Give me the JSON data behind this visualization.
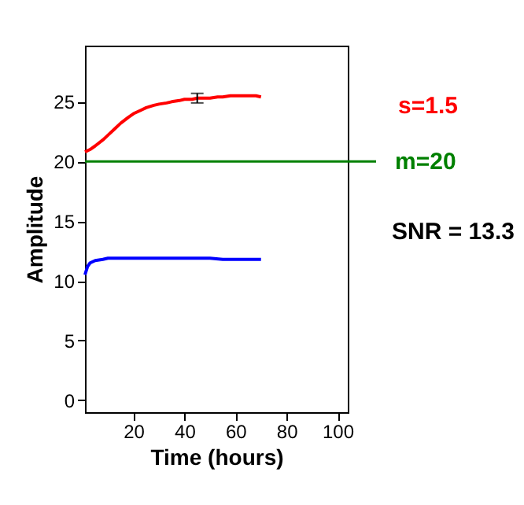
{
  "chart_data": {
    "type": "line",
    "xlabel": "Time (hours)",
    "ylabel": "Amplitude",
    "xlim": [
      1,
      104
    ],
    "ylim": [
      -1,
      29.7
    ],
    "xticks": [
      20,
      40,
      60,
      80,
      100
    ],
    "yticks": [
      0,
      5,
      10,
      15,
      20,
      25
    ],
    "grid": false,
    "marker": "none",
    "line_style": "solid",
    "series": [
      {
        "color": "#ff0000",
        "x": [
          1,
          3,
          5,
          8,
          10,
          13,
          15,
          18,
          20,
          23,
          25,
          28,
          30,
          33,
          35,
          38,
          40,
          43,
          45,
          48,
          50,
          53,
          55,
          58,
          60,
          63,
          65,
          68,
          70
        ],
        "values": [
          20.8,
          21.0,
          21.3,
          21.8,
          22.2,
          22.8,
          23.2,
          23.7,
          24.0,
          24.3,
          24.5,
          24.7,
          24.8,
          24.9,
          25.0,
          25.1,
          25.2,
          25.2,
          25.3,
          25.3,
          25.3,
          25.4,
          25.4,
          25.5,
          25.5,
          25.5,
          25.5,
          25.5,
          25.4
        ],
        "errors": [
          null,
          null,
          null,
          null,
          null,
          null,
          null,
          null,
          null,
          null,
          null,
          null,
          null,
          null,
          null,
          null,
          null,
          null,
          0.4,
          null,
          null,
          null,
          null,
          null,
          null,
          null,
          null,
          null,
          null
        ]
      },
      {
        "color": "#0000ff",
        "x": [
          1,
          2,
          3,
          5,
          8,
          10,
          15,
          20,
          25,
          30,
          35,
          40,
          45,
          50,
          55,
          60,
          65,
          70
        ],
        "values": [
          10.5,
          11.2,
          11.5,
          11.7,
          11.8,
          11.9,
          11.9,
          11.9,
          11.9,
          11.9,
          11.9,
          11.9,
          11.9,
          11.9,
          11.8,
          11.8,
          11.8,
          11.8
        ]
      }
    ],
    "ref_lines": [
      {
        "axis": "y",
        "value": 20,
        "label": "m=20",
        "color": "#008000",
        "line_style": "solid"
      }
    ],
    "annotations": [
      "s=1.5",
      "SNR = 13.3"
    ]
  }
}
